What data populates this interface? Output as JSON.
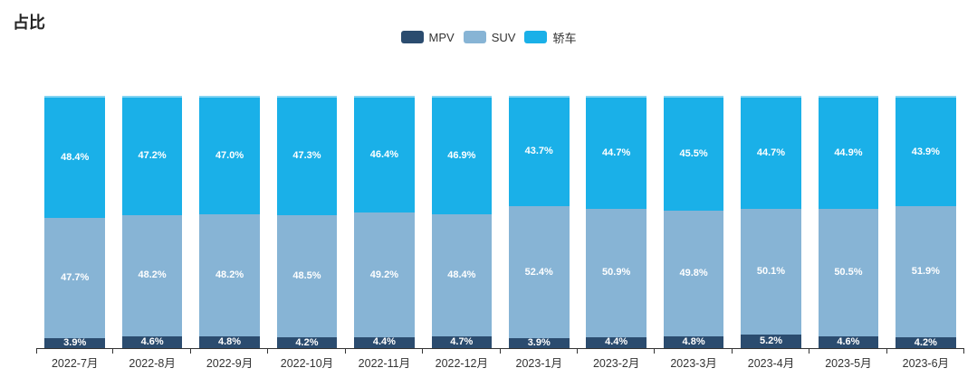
{
  "title": "占比",
  "axis": {
    "line_color": "#333333",
    "label_color": "#333333"
  },
  "chart_data": {
    "type": "bar",
    "stacked": true,
    "title": "占比",
    "value_suffix": "%",
    "ylim": [
      0,
      100
    ],
    "grid": false,
    "legend_position": "top",
    "data_label_color": "#ffffff",
    "categories": [
      "2022-7月",
      "2022-8月",
      "2022-9月",
      "2022-10月",
      "2022-11月",
      "2022-12月",
      "2023-1月",
      "2023-2月",
      "2023-3月",
      "2023-4月",
      "2023-5月",
      "2023-6月"
    ],
    "series": [
      {
        "name": "MPV",
        "color": "#2B4C6F",
        "values": [
          3.9,
          4.6,
          4.8,
          4.2,
          4.4,
          4.7,
          3.9,
          4.4,
          4.8,
          5.2,
          4.6,
          4.2
        ]
      },
      {
        "name": "SUV",
        "color": "#87B4D5",
        "values": [
          47.7,
          48.2,
          48.2,
          48.5,
          49.2,
          48.4,
          52.4,
          50.9,
          49.8,
          50.1,
          50.5,
          51.9
        ]
      },
      {
        "name": "轿车",
        "color": "#1AB0E8",
        "values": [
          48.4,
          47.2,
          47.0,
          47.3,
          46.4,
          46.9,
          43.7,
          44.7,
          45.5,
          44.7,
          44.9,
          43.9
        ]
      }
    ]
  }
}
